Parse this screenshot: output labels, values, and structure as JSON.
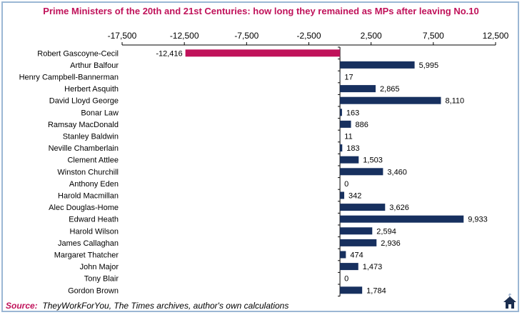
{
  "chart_data": {
    "type": "bar",
    "orientation": "horizontal",
    "title": "Prime Ministers of the 20th and 21st Centuries: how long they remained as MPs after leaving No.10",
    "xlabel": "",
    "ylabel": "",
    "xlim": [
      -17500,
      12500
    ],
    "ticks": [
      -17500,
      -12500,
      -7500,
      -2500,
      2500,
      7500,
      12500
    ],
    "tick_labels": [
      "-17,500",
      "-12,500",
      "-7,500",
      "-2,500",
      "2,500",
      "7,500",
      "12,500"
    ],
    "categories": [
      "Robert Gascoyne-Cecil",
      "Arthur Balfour",
      "Henry Campbell-Bannerman",
      "Herbert Asquith",
      "David Lloyd George",
      "Bonar Law",
      "Ramsay MacDonald",
      "Stanley Baldwin",
      "Neville Chamberlain",
      "Clement Attlee",
      "Winston Churchill",
      "Anthony Eden",
      "Harold Macmillan",
      "Alec Douglas-Home",
      "Edward Heath",
      "Harold Wilson",
      "James Callaghan",
      "Margaret Thatcher",
      "John Major",
      "Tony Blair",
      "Gordon Brown"
    ],
    "values": [
      -12416,
      5995,
      17,
      2865,
      8110,
      163,
      886,
      11,
      183,
      1503,
      3460,
      0,
      342,
      3626,
      9933,
      2594,
      2936,
      474,
      1473,
      0,
      1784
    ],
    "value_labels": [
      "-12,416",
      "5,995",
      "17",
      "2,865",
      "8,110",
      "163",
      "886",
      "11",
      "183",
      "1,503",
      "3,460",
      "0",
      "342",
      "3,626",
      "9,933",
      "2,594",
      "2,936",
      "474",
      "1,473",
      "0",
      "1,784"
    ],
    "colors": {
      "positive": "#17305f",
      "negative": "#c0125a",
      "axis": "#000000",
      "title": "#c0125a",
      "frame": "#9bb7d4"
    },
    "grid": false,
    "legend": "none"
  },
  "source": {
    "label": "Source:",
    "text": "TheyWorkForYou, The Times archives, author's own calculations"
  },
  "logo": {
    "icon": "house-logo-icon",
    "letter": "e"
  }
}
